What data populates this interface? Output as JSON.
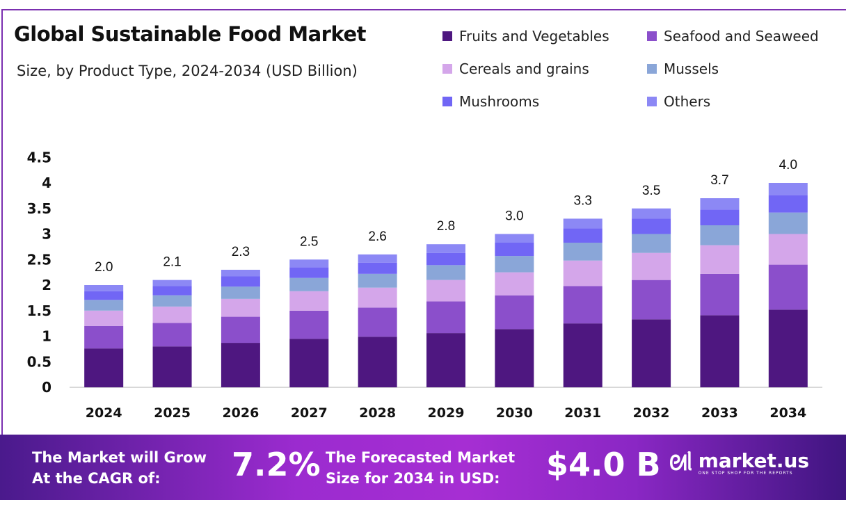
{
  "chart_data": {
    "type": "bar",
    "stacked": true,
    "title": "Global Sustainable Food Market",
    "subtitle": "Size, by Product Type, 2024-2034 (USD Billion)",
    "xlabel": "",
    "ylabel": "",
    "categories": [
      "2024",
      "2025",
      "2026",
      "2027",
      "2028",
      "2029",
      "2030",
      "2031",
      "2032",
      "2033",
      "2034"
    ],
    "ylim": [
      0,
      4.5
    ],
    "yticks": [
      "0",
      "0.5",
      "1",
      "1.5",
      "2",
      "2.5",
      "3",
      "3.5",
      "4",
      "4.5"
    ],
    "grid": false,
    "legend_position": "top-right",
    "totals": [
      "2.0",
      "2.1",
      "2.3",
      "2.5",
      "2.6",
      "2.8",
      "3.0",
      "3.3",
      "3.5",
      "3.7",
      "4.0"
    ],
    "series": [
      {
        "name": "Fruits and Vegetables",
        "color": "#4e1780",
        "values": [
          0.76,
          0.8,
          0.87,
          0.95,
          0.99,
          1.06,
          1.14,
          1.25,
          1.33,
          1.41,
          1.52
        ]
      },
      {
        "name": "Seafood and Seaweed",
        "color": "#8b4fcb",
        "values": [
          0.44,
          0.46,
          0.51,
          0.55,
          0.57,
          0.62,
          0.66,
          0.73,
          0.77,
          0.81,
          0.88
        ]
      },
      {
        "name": "Cereals and grains",
        "color": "#d4a6ea",
        "values": [
          0.3,
          0.32,
          0.35,
          0.38,
          0.39,
          0.42,
          0.45,
          0.5,
          0.53,
          0.56,
          0.6
        ]
      },
      {
        "name": "Mussels",
        "color": "#8aa6d8",
        "values": [
          0.21,
          0.22,
          0.24,
          0.26,
          0.27,
          0.29,
          0.32,
          0.35,
          0.37,
          0.39,
          0.42
        ]
      },
      {
        "name": "Mushrooms",
        "color": "#7166f5",
        "values": [
          0.17,
          0.18,
          0.2,
          0.21,
          0.22,
          0.24,
          0.26,
          0.28,
          0.3,
          0.31,
          0.34
        ]
      },
      {
        "name": "Others",
        "color": "#8c88f5",
        "values": [
          0.12,
          0.12,
          0.13,
          0.15,
          0.16,
          0.17,
          0.17,
          0.19,
          0.2,
          0.22,
          0.24
        ]
      }
    ]
  },
  "banner": {
    "cagr_label_line1": "The Market will Grow",
    "cagr_label_line2": "At the CAGR of:",
    "cagr_value": "7.2%",
    "forecast_label_line1": "The Forecasted Market",
    "forecast_label_line2": "Size for 2034 in USD:",
    "forecast_value": "$4.0 B",
    "brand_name": "market.us",
    "brand_tagline": "ONE STOP SHOP FOR THE REPORTS"
  }
}
